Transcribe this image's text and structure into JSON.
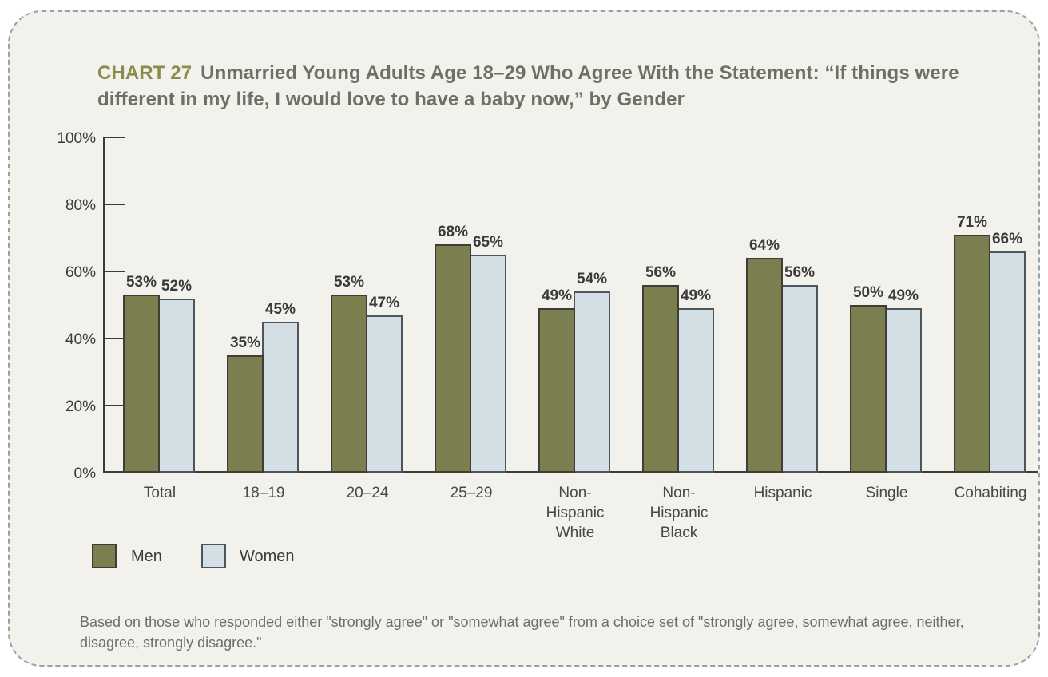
{
  "title": {
    "tag": "CHART 27",
    "text": "Unmarried Young Adults Age 18–29 Who Agree With the Statement: “If things were different in my life, I would love to have a baby now,” by Gender"
  },
  "chart_data": {
    "type": "bar",
    "title": "Unmarried Young Adults Age 18–29 Who Agree With the Statement: “If things were different in my life, I would love to have a baby now,” by Gender",
    "categories": [
      "Total",
      "18–19",
      "20–24",
      "25–29",
      "Non-Hispanic White",
      "Non-Hispanic Black",
      "Hispanic",
      "Single",
      "Cohabiting"
    ],
    "series": [
      {
        "name": "Men",
        "color": "#7b7e4f",
        "border": "#3e3e36",
        "values": [
          53,
          35,
          53,
          68,
          49,
          56,
          64,
          50,
          71
        ]
      },
      {
        "name": "Women",
        "color": "#d3dfe4",
        "border": "#4c565e",
        "values": [
          52,
          45,
          47,
          65,
          54,
          49,
          56,
          49,
          66
        ]
      }
    ],
    "value_suffix": "%",
    "y_ticks": [
      {
        "label": "100%",
        "value": 100
      },
      {
        "label": "80%",
        "value": 80
      },
      {
        "label": "60%",
        "value": 60
      },
      {
        "label": "40%",
        "value": 40
      },
      {
        "label": "20%",
        "value": 20
      },
      {
        "label": "0%",
        "value": 0
      }
    ],
    "ylim": [
      0,
      100
    ],
    "grid": false,
    "legend_position": "bottom-left"
  },
  "legend": {
    "items": [
      {
        "label": "Men",
        "color": "#7b7e4f",
        "border": "#3e3e36"
      },
      {
        "label": "Women",
        "color": "#d3dfe4",
        "border": "#4c565e"
      }
    ]
  },
  "footnote": "Based on those who responded either \"strongly agree\" or \"somewhat agree\" from a choice set of \"strongly agree, somewhat agree, neither, disagree, strongly disagree.\"",
  "colors": {
    "panel_background": "#f3f1ec",
    "panel_border": "#9aa0a5",
    "title_tag": "#8a8c4b",
    "title_text": "#6e6f67",
    "axis": "#3b3b37"
  }
}
